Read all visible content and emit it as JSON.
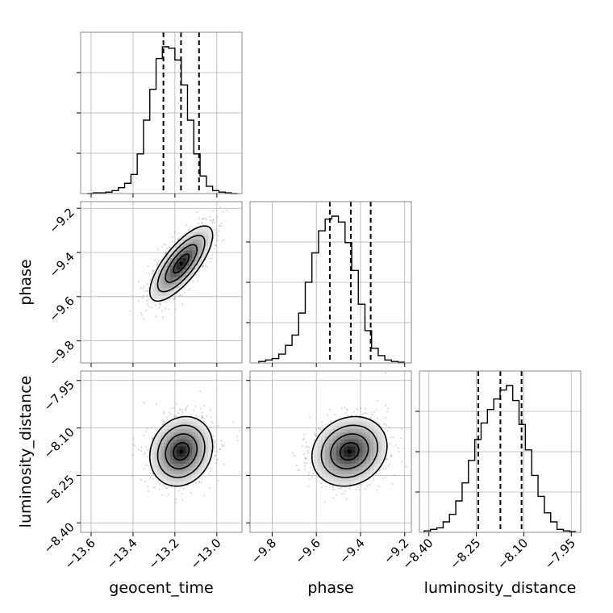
{
  "chart_data": {
    "type": "corner",
    "parameters": [
      "geocent_time",
      "phase",
      "luminosity_distance"
    ],
    "axis_labels": {
      "geocent_time": "geocent_time",
      "phase": "phase",
      "luminosity_distance": "luminosity_distance"
    },
    "ranges": {
      "geocent_time": [
        -13.65,
        -12.88
      ],
      "phase": [
        -9.9,
        -9.17
      ],
      "luminosity_distance": [
        -8.43,
        -7.92
      ]
    },
    "ticks": {
      "geocent_time": {
        "values": [
          -13.6,
          -13.4,
          -13.2,
          -13.0
        ],
        "labels": [
          "−13.6",
          "−13.4",
          "−13.2",
          "−13.0"
        ]
      },
      "phase": {
        "values": [
          -9.8,
          -9.6,
          -9.4,
          -9.2
        ],
        "labels": [
          "−9.8",
          "−9.6",
          "−9.4",
          "−9.2"
        ]
      },
      "luminosity_distance": {
        "values": [
          -8.4,
          -8.25,
          -8.1,
          -7.95
        ],
        "labels": [
          "−8.40",
          "−8.25",
          "−8.10",
          "−7.95"
        ]
      }
    },
    "quantiles": {
      "geocent_time": [
        -13.255,
        -13.171,
        -13.085
      ],
      "phase": [
        -9.539,
        -9.444,
        -9.354
      ],
      "luminosity_distance": [
        -8.244,
        -8.174,
        -8.107
      ]
    },
    "histograms": {
      "geocent_time": {
        "edges": [
          -13.62,
          -13.59,
          -13.56,
          -13.53,
          -13.5,
          -13.47,
          -13.44,
          -13.41,
          -13.38,
          -13.35,
          -13.32,
          -13.29,
          -13.26,
          -13.23,
          -13.2,
          -13.17,
          -13.14,
          -13.11,
          -13.08,
          -13.05,
          -13.02,
          -12.99,
          -12.96,
          -12.93,
          -12.9
        ],
        "counts": [
          0,
          0.005,
          0.005,
          0.01,
          0.02,
          0.04,
          0.07,
          0.13,
          0.27,
          0.5,
          0.71,
          0.92,
          1.0,
          0.99,
          0.91,
          0.74,
          0.5,
          0.27,
          0.12,
          0.05,
          0.02,
          0.01,
          0.005,
          0
        ]
      },
      "phase": {
        "edges": [
          -9.86,
          -9.83,
          -9.8,
          -9.77,
          -9.74,
          -9.71,
          -9.68,
          -9.65,
          -9.62,
          -9.59,
          -9.56,
          -9.53,
          -9.5,
          -9.47,
          -9.44,
          -9.41,
          -9.38,
          -9.35,
          -9.32,
          -9.29,
          -9.26,
          -9.23,
          -9.2
        ],
        "counts": [
          0.01,
          0.02,
          0.03,
          0.06,
          0.12,
          0.19,
          0.34,
          0.55,
          0.75,
          0.9,
          0.98,
          1.0,
          0.96,
          0.82,
          0.63,
          0.4,
          0.22,
          0.1,
          0.05,
          0.02,
          0.01,
          0.005
        ]
      },
      "luminosity_distance": {
        "edges": [
          -8.415,
          -8.395,
          -8.375,
          -8.355,
          -8.335,
          -8.315,
          -8.295,
          -8.275,
          -8.255,
          -8.235,
          -8.215,
          -8.195,
          -8.175,
          -8.155,
          -8.135,
          -8.115,
          -8.095,
          -8.075,
          -8.055,
          -8.035,
          -8.015,
          -7.995,
          -7.975,
          -7.955,
          -7.935
        ],
        "counts": [
          0.01,
          0.02,
          0.03,
          0.07,
          0.12,
          0.21,
          0.33,
          0.48,
          0.62,
          0.73,
          0.82,
          0.89,
          0.95,
          0.98,
          0.88,
          0.72,
          0.55,
          0.38,
          0.24,
          0.13,
          0.07,
          0.02,
          0.01,
          0.005
        ]
      }
    },
    "pairs": [
      {
        "x": "geocent_time",
        "y": "phase",
        "mean": [
          -13.17,
          -9.45
        ],
        "sd": [
          0.075,
          0.085
        ],
        "corr": 0.75
      },
      {
        "x": "geocent_time",
        "y": "luminosity_distance",
        "mean": [
          -13.17,
          -8.174
        ],
        "sd": [
          0.075,
          0.055
        ],
        "corr": 0.15
      },
      {
        "x": "phase",
        "y": "luminosity_distance",
        "mean": [
          -9.45,
          -8.174
        ],
        "sd": [
          0.085,
          0.055
        ],
        "corr": 0.15
      }
    ],
    "contour_levels_sigma": [
      0.5,
      1.0,
      1.5,
      2.0
    ],
    "grid": true
  }
}
